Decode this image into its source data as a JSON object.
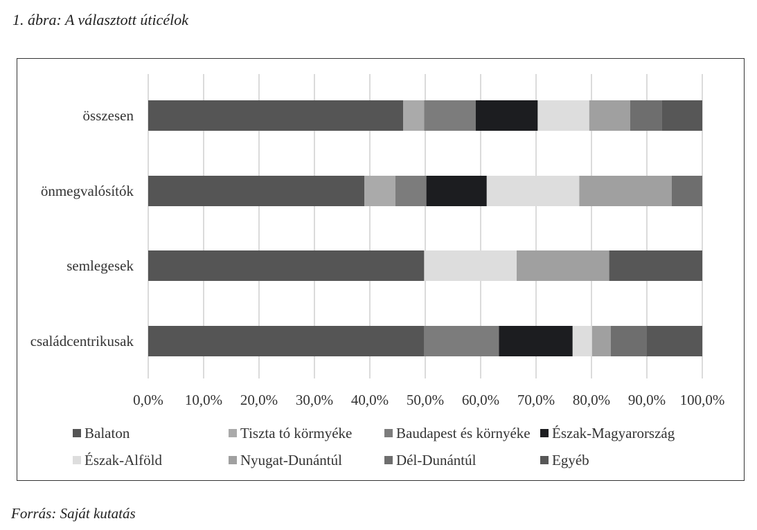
{
  "figure": {
    "title": "1. ábra: A választott úticélok",
    "source": "Forrás: Saját kutatás"
  },
  "chart_data": {
    "type": "bar",
    "orientation": "horizontal",
    "stacked": "100%",
    "categories": [
      "összesen",
      "önmegvalósítók",
      "semlegesek",
      "családcentrikusak"
    ],
    "x_ticks": [
      "0,0%",
      "10,0%",
      "20,0%",
      "30,0%",
      "40,0%",
      "50,0%",
      "60,0%",
      "70,0%",
      "80,0%",
      "90,0%",
      "100,0%"
    ],
    "xlim": [
      0,
      100
    ],
    "grid": "vertical",
    "legend_position": "bottom",
    "series": [
      {
        "name": "Balaton",
        "color": "#555555",
        "values": [
          46.0,
          39.0,
          49.8,
          49.8
        ]
      },
      {
        "name": "Tiszta tó körmyéke",
        "color": "#aaaaaa",
        "values": [
          3.8,
          5.6,
          0,
          0
        ]
      },
      {
        "name": "Baudapest és környéke",
        "color": "#7c7c7c",
        "values": [
          9.3,
          5.6,
          0,
          13.5
        ]
      },
      {
        "name": "Észak-Magyarország",
        "color": "#1c1d20",
        "values": [
          11.2,
          10.9,
          0,
          13.3
        ]
      },
      {
        "name": "Észak-Alföld",
        "color": "#dddddd",
        "values": [
          9.3,
          16.7,
          16.7,
          3.5
        ]
      },
      {
        "name": "Nyugat-Dunántúl",
        "color": "#a0a0a0",
        "values": [
          7.4,
          16.7,
          16.7,
          3.4
        ]
      },
      {
        "name": "Dél-Dunántúl",
        "color": "#6e6e6e",
        "values": [
          5.7,
          5.5,
          0,
          6.5
        ]
      },
      {
        "name": "Egyéb",
        "color": "#575757",
        "values": [
          7.3,
          0,
          16.8,
          10.0
        ]
      }
    ]
  }
}
